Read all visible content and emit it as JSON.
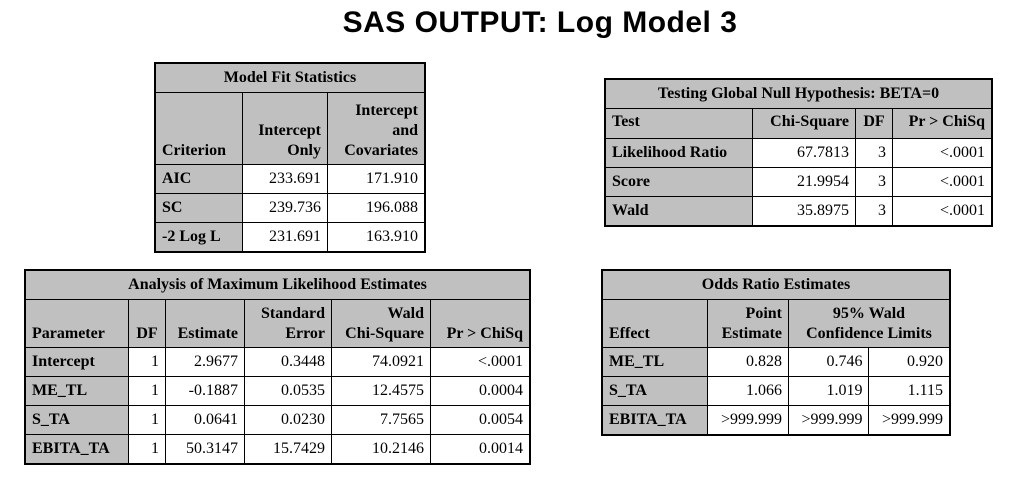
{
  "title": "SAS OUTPUT: Log Model 3",
  "model_fit": {
    "caption": "Model Fit Statistics",
    "headers": [
      "Criterion",
      "Intercept\nOnly",
      "Intercept\nand\nCovariates"
    ],
    "rows": [
      [
        "AIC",
        "233.691",
        "171.910"
      ],
      [
        "SC",
        "239.736",
        "196.088"
      ],
      [
        "-2 Log L",
        "231.691",
        "163.910"
      ]
    ]
  },
  "global_null": {
    "caption": "Testing Global Null Hypothesis: BETA=0",
    "headers": [
      "Test",
      "Chi-Square",
      "DF",
      "Pr > ChiSq"
    ],
    "rows": [
      [
        "Likelihood Ratio",
        "67.7813",
        "3",
        "<.0001"
      ],
      [
        "Score",
        "21.9954",
        "3",
        "<.0001"
      ],
      [
        "Wald",
        "35.8975",
        "3",
        "<.0001"
      ]
    ]
  },
  "mle": {
    "caption": "Analysis of Maximum Likelihood Estimates",
    "headers": [
      "Parameter",
      "DF",
      "Estimate",
      "Standard\nError",
      "Wald\nChi-Square",
      "Pr > ChiSq"
    ],
    "rows": [
      [
        "Intercept",
        "1",
        "2.9677",
        "0.3448",
        "74.0921",
        "<.0001"
      ],
      [
        "ME_TL",
        "1",
        "-0.1887",
        "0.0535",
        "12.4575",
        "0.0004"
      ],
      [
        "S_TA",
        "1",
        "0.0641",
        "0.0230",
        "7.7565",
        "0.0054"
      ],
      [
        "EBITA_TA",
        "1",
        "50.3147",
        "15.7429",
        "10.2146",
        "0.0014"
      ]
    ]
  },
  "odds_ratio": {
    "caption": "Odds Ratio Estimates",
    "headers": [
      "Effect",
      "Point\nEstimate",
      "95% Wald\nConfidence Limits"
    ],
    "rows": [
      [
        "ME_TL",
        "0.828",
        "0.746",
        "0.920"
      ],
      [
        "S_TA",
        "1.066",
        "1.019",
        "1.115"
      ],
      [
        "EBITA_TA",
        ">999.999",
        ">999.999",
        ">999.999"
      ]
    ]
  }
}
